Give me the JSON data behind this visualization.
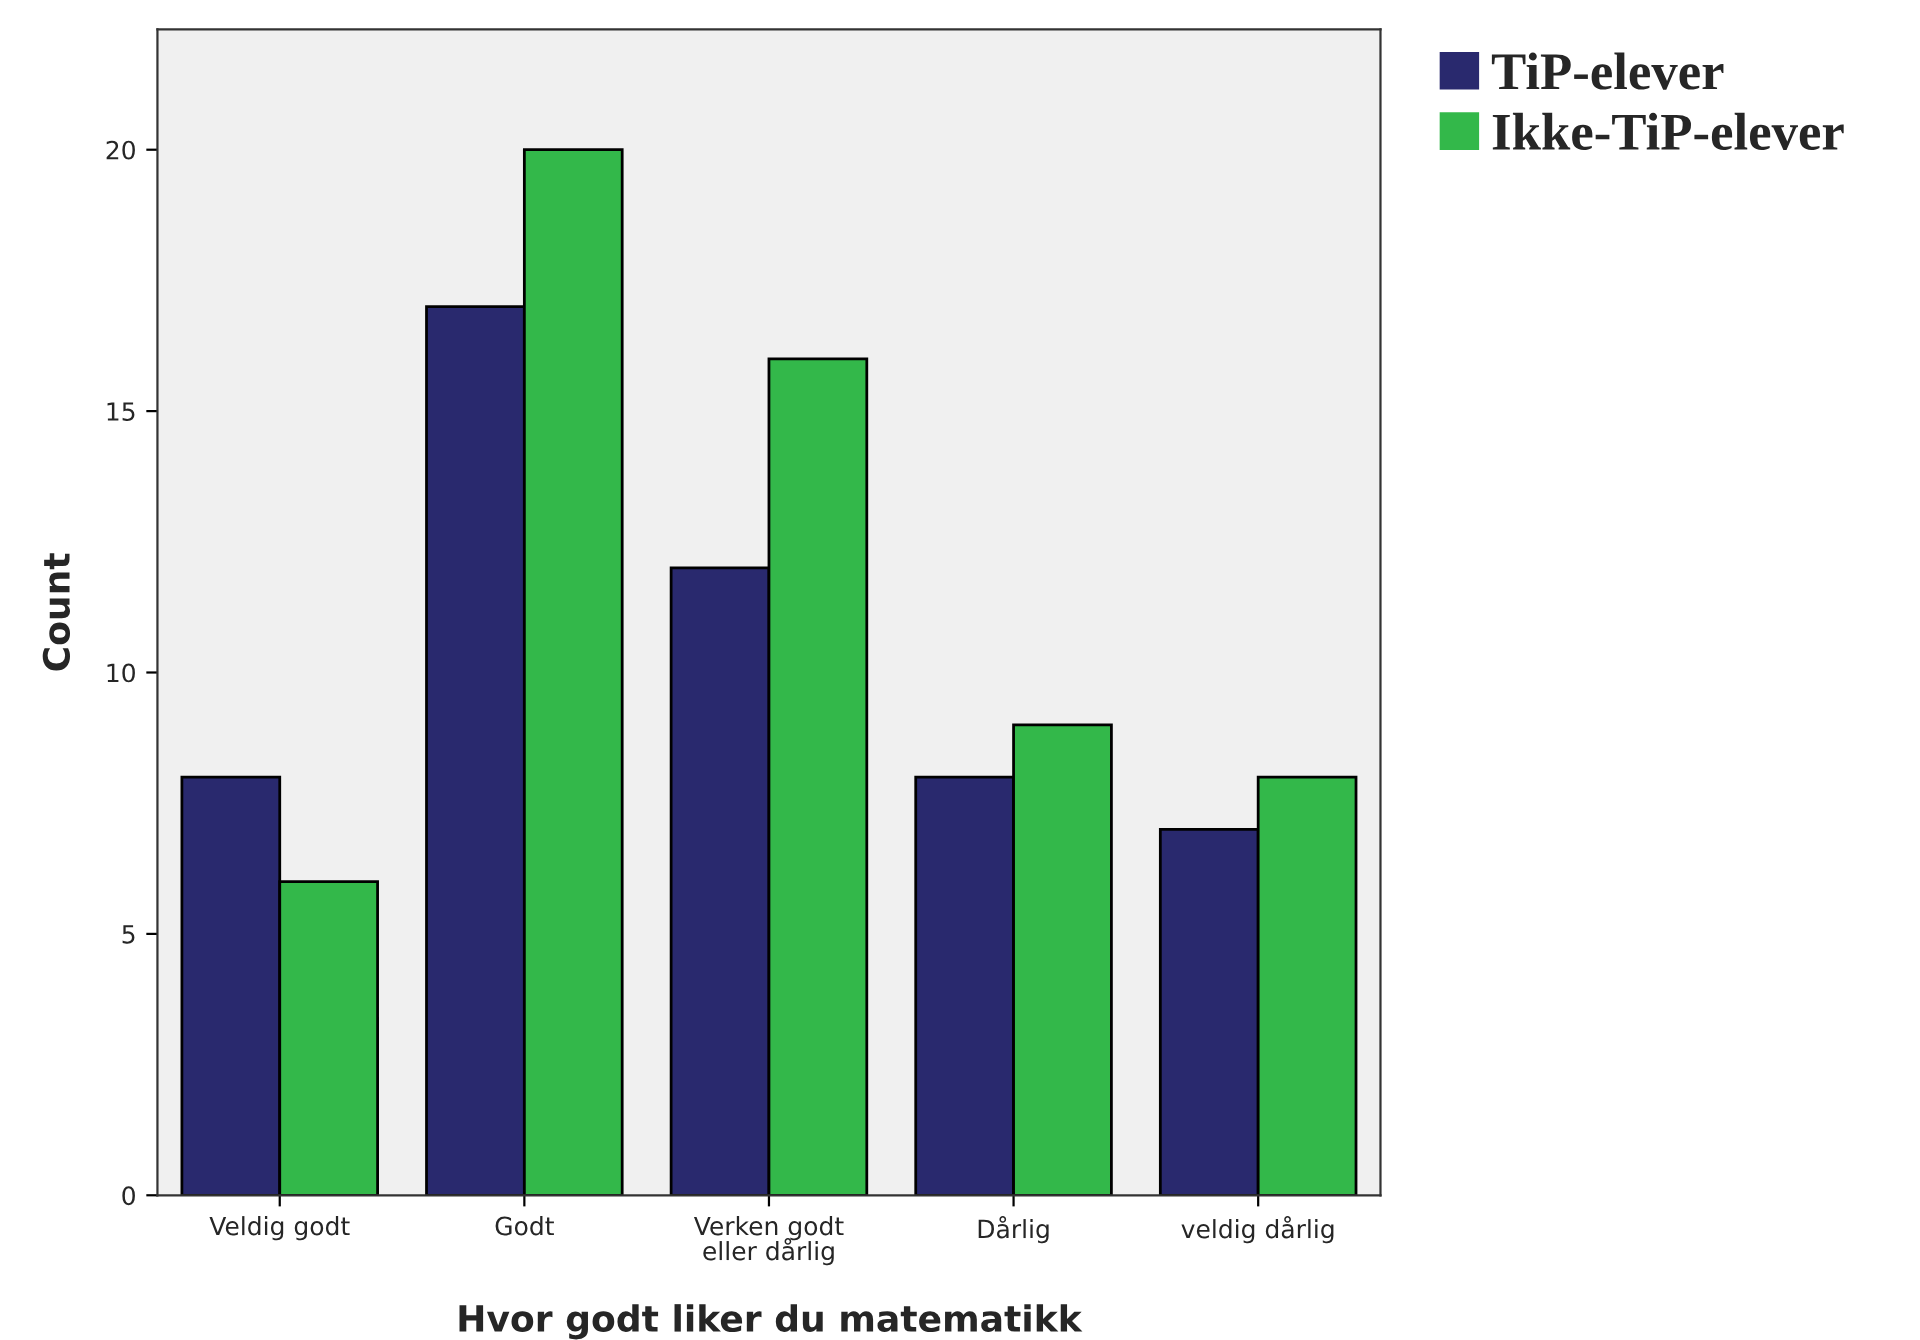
{
  "chart_data": {
    "type": "bar",
    "xlabel": "Hvor godt liker du matematikk",
    "ylabel": "Count",
    "categories": [
      "Veldig godt",
      "Godt",
      "Verken godt\neller dårlig",
      "Dårlig",
      "veldig dårlig"
    ],
    "series": [
      {
        "name": "TiP-elever",
        "color": "#29296e",
        "values": [
          8,
          17,
          12,
          8,
          7
        ]
      },
      {
        "name": "Ikke-TiP-elever",
        "color": "#33b84a",
        "values": [
          6,
          20,
          16,
          9,
          8
        ]
      }
    ],
    "ylim": [
      0,
      22.3
    ],
    "yticks": [
      0,
      5,
      10,
      15,
      20
    ],
    "grid": false,
    "legend": "top right"
  }
}
